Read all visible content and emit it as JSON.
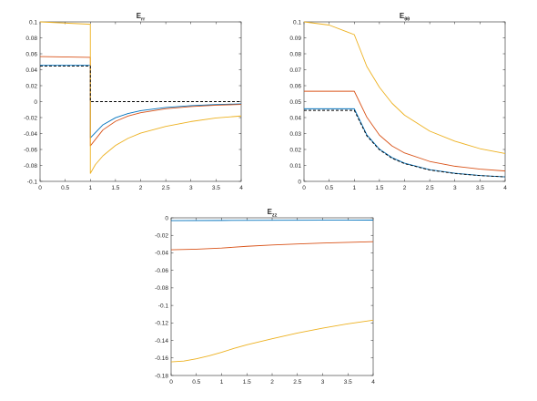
{
  "chart_data": [
    {
      "type": "line",
      "title": "E",
      "title_subscript": "rr",
      "xlabel": "",
      "ylabel": "",
      "xlim": [
        0,
        4
      ],
      "ylim": [
        -0.1,
        0.1
      ],
      "xticks": [
        "0",
        "0.5",
        "1",
        "1.5",
        "2",
        "2.5",
        "3",
        "3.5",
        "4"
      ],
      "yticks": [
        "-0.1",
        "-0.08",
        "-0.06",
        "-0.04",
        "-0.02",
        "0",
        "0.02",
        "0.04",
        "0.06",
        "0.08",
        "0.1"
      ],
      "grid": false,
      "series": [
        {
          "color": "#0072BD",
          "style": "solid",
          "points": [
            [
              0,
              0.0455
            ],
            [
              1,
              0.0455
            ],
            [
              1,
              -0.0455
            ],
            [
              1.25,
              -0.0291
            ],
            [
              1.5,
              -0.0202
            ],
            [
              1.75,
              -0.0149
            ],
            [
              2,
              -0.0114
            ],
            [
              2.5,
              -0.0073
            ],
            [
              3,
              -0.0051
            ],
            [
              3.5,
              -0.0037
            ],
            [
              4,
              -0.0028
            ]
          ]
        },
        {
          "color": "#D95319",
          "style": "solid",
          "points": [
            [
              0,
              0.0565
            ],
            [
              1,
              0.0555
            ],
            [
              1,
              -0.0555
            ],
            [
              1.25,
              -0.0355
            ],
            [
              1.5,
              -0.0247
            ],
            [
              1.75,
              -0.0181
            ],
            [
              2,
              -0.0139
            ],
            [
              2.5,
              -0.0089
            ],
            [
              3,
              -0.0062
            ],
            [
              3.5,
              -0.0045
            ],
            [
              4,
              -0.0035
            ]
          ]
        },
        {
          "color": "#EDB120",
          "style": "solid",
          "points": [
            [
              0,
              0.1
            ],
            [
              1,
              0.097
            ],
            [
              1,
              -0.09
            ],
            [
              1.1,
              -0.079
            ],
            [
              1.25,
              -0.068
            ],
            [
              1.5,
              -0.055
            ],
            [
              1.75,
              -0.046
            ],
            [
              2,
              -0.0395
            ],
            [
              2.5,
              -0.031
            ],
            [
              3,
              -0.025
            ],
            [
              3.5,
              -0.0205
            ],
            [
              4,
              -0.018
            ]
          ]
        },
        {
          "color": "#000000",
          "style": "dashed",
          "points": [
            [
              0,
              0.0445
            ],
            [
              1,
              0.0445
            ],
            [
              1,
              0
            ],
            [
              4,
              0
            ]
          ]
        }
      ]
    },
    {
      "type": "line",
      "title": "E",
      "title_subscript": "θθ",
      "xlabel": "",
      "ylabel": "",
      "xlim": [
        0,
        4
      ],
      "ylim": [
        0,
        0.1
      ],
      "xticks": [
        "0",
        "0.5",
        "1",
        "1.5",
        "2",
        "2.5",
        "3",
        "3.5",
        "4"
      ],
      "yticks": [
        "0",
        "0.01",
        "0.02",
        "0.03",
        "0.04",
        "0.05",
        "0.06",
        "0.07",
        "0.08",
        "0.09",
        "0.1"
      ],
      "grid": false,
      "series": [
        {
          "color": "#0072BD",
          "style": "solid",
          "points": [
            [
              0,
              0.0455
            ],
            [
              1,
              0.0455
            ],
            [
              1.25,
              0.0291
            ],
            [
              1.5,
              0.0202
            ],
            [
              1.75,
              0.0149
            ],
            [
              2,
              0.0114
            ],
            [
              2.5,
              0.0073
            ],
            [
              3,
              0.0051
            ],
            [
              3.5,
              0.0037
            ],
            [
              4,
              0.0028
            ]
          ]
        },
        {
          "color": "#D95319",
          "style": "solid",
          "points": [
            [
              0,
              0.0565
            ],
            [
              1,
              0.0565
            ],
            [
              1.25,
              0.0402
            ],
            [
              1.5,
              0.029
            ],
            [
              1.75,
              0.0222
            ],
            [
              2,
              0.0178
            ],
            [
              2.5,
              0.0125
            ],
            [
              3,
              0.0095
            ],
            [
              3.5,
              0.0077
            ],
            [
              4,
              0.0065
            ]
          ]
        },
        {
          "color": "#EDB120",
          "style": "solid",
          "points": [
            [
              0,
              0.1
            ],
            [
              0.5,
              0.098
            ],
            [
              1,
              0.092
            ],
            [
              1.25,
              0.072
            ],
            [
              1.5,
              0.059
            ],
            [
              1.75,
              0.049
            ],
            [
              2,
              0.0415
            ],
            [
              2.5,
              0.0315
            ],
            [
              3,
              0.0252
            ],
            [
              3.5,
              0.0205
            ],
            [
              4,
              0.0175
            ]
          ]
        },
        {
          "color": "#000000",
          "style": "dashed",
          "points": [
            [
              0,
              0.0445
            ],
            [
              1,
              0.0445
            ],
            [
              1.25,
              0.0285
            ],
            [
              1.5,
              0.0198
            ],
            [
              1.75,
              0.0145
            ],
            [
              2,
              0.0111
            ],
            [
              2.5,
              0.0071
            ],
            [
              3,
              0.0049
            ],
            [
              3.5,
              0.0036
            ],
            [
              4,
              0.0028
            ]
          ]
        }
      ]
    },
    {
      "type": "line",
      "title": "E",
      "title_subscript": "zz",
      "xlabel": "",
      "ylabel": "",
      "xlim": [
        0,
        4
      ],
      "ylim": [
        -0.18,
        0
      ],
      "xticks": [
        "0",
        "0.5",
        "1",
        "1.5",
        "2",
        "2.5",
        "3",
        "3.5",
        "4"
      ],
      "yticks": [
        "-0.18",
        "-0.16",
        "-0.14",
        "-0.12",
        "-0.1",
        "-0.08",
        "-0.06",
        "-0.04",
        "-0.02",
        "0"
      ],
      "grid": false,
      "series": [
        {
          "color": "#0072BD",
          "style": "solid",
          "points": [
            [
              0,
              -0.0032
            ],
            [
              1,
              -0.003
            ],
            [
              2,
              -0.0028
            ],
            [
              3,
              -0.0027
            ],
            [
              4,
              -0.0026
            ]
          ]
        },
        {
          "color": "#D95319",
          "style": "solid",
          "points": [
            [
              0,
              -0.0365
            ],
            [
              0.5,
              -0.0358
            ],
            [
              1,
              -0.0345
            ],
            [
              1.5,
              -0.0325
            ],
            [
              2,
              -0.031
            ],
            [
              2.5,
              -0.0298
            ],
            [
              3,
              -0.0288
            ],
            [
              3.5,
              -0.028
            ],
            [
              4,
              -0.0272
            ]
          ]
        },
        {
          "color": "#EDB120",
          "style": "solid",
          "points": [
            [
              0,
              -0.1645
            ],
            [
              0.25,
              -0.1635
            ],
            [
              0.5,
              -0.161
            ],
            [
              0.75,
              -0.1575
            ],
            [
              1,
              -0.1535
            ],
            [
              1.25,
              -0.149
            ],
            [
              1.5,
              -0.145
            ],
            [
              2,
              -0.138
            ],
            [
              2.5,
              -0.1315
            ],
            [
              3,
              -0.126
            ],
            [
              3.5,
              -0.121
            ],
            [
              4,
              -0.1168
            ]
          ]
        }
      ]
    }
  ]
}
